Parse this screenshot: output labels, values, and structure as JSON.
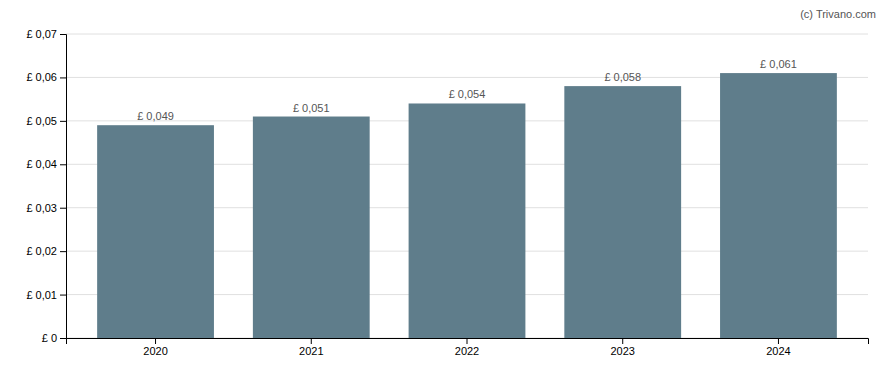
{
  "chart_data": {
    "type": "bar",
    "categories": [
      "2020",
      "2021",
      "2022",
      "2023",
      "2024"
    ],
    "values": [
      0.049,
      0.051,
      0.054,
      0.058,
      0.061
    ],
    "value_labels": [
      "£ 0,049",
      "£ 0,051",
      "£ 0,054",
      "£ 0,058",
      "£ 0,061"
    ],
    "data_labels": true,
    "color": "#5f7d8b",
    "ylim": [
      0,
      0.07
    ],
    "yticks": [
      {
        "value": 0,
        "label": "£ 0"
      },
      {
        "value": 0.01,
        "label": "£ 0,01"
      },
      {
        "value": 0.02,
        "label": "£ 0,02"
      },
      {
        "value": 0.03,
        "label": "£ 0,03"
      },
      {
        "value": 0.04,
        "label": "£ 0,04"
      },
      {
        "value": 0.05,
        "label": "£ 0,05"
      },
      {
        "value": 0.06,
        "label": "£ 0,06"
      },
      {
        "value": 0.07,
        "label": "£ 0,07"
      }
    ],
    "grid": true,
    "annotation": "(c) Trivano.com"
  }
}
